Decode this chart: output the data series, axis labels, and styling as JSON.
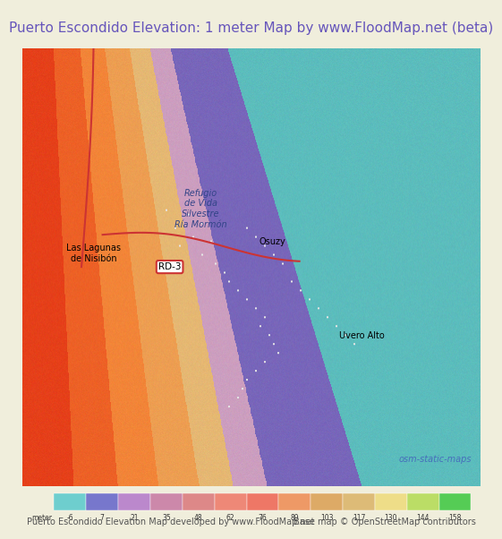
{
  "title": "Puerto Escondido Elevation: 1 meter Map by www.FloodMap.net (beta)",
  "title_color": "#6655bb",
  "title_bg": "#f0eedc",
  "title_fontsize": 11,
  "colorbar_labels": [
    "-6",
    "7",
    "21",
    "35",
    "48",
    "62",
    "76",
    "89",
    "103",
    "117",
    "130",
    "144",
    "158"
  ],
  "colorbar_label_prefix": "meter",
  "colorbar_colors": [
    "#6ecece",
    "#7777cc",
    "#bb88cc",
    "#cc88aa",
    "#dd8888",
    "#ee8877",
    "#ee7766",
    "#ee9966",
    "#ddaa66",
    "#ddbb77",
    "#eedd88",
    "#bbdd66",
    "#55cc55"
  ],
  "footer_left": "Puerto Escondido Elevation Map developed by www.FloodMap.net",
  "footer_right": "Base map © OpenStreetMap contributors",
  "footer_color": "#555555",
  "footer_fontsize": 7,
  "map_bg_ocean": "#5bbcbc",
  "map_bg_land_low": "#7766bb",
  "map_bg_land_high": "#ff6633",
  "osm_text": "osm-static-maps",
  "osm_text_color": "#4466bb",
  "label_las_lagunas": "Las Lagunas\nde Nisibón",
  "label_refugio": "Refugio\nde Vida\nSilvestre\nRía Mormón",
  "label_uvero": "Uvero Alto",
  "label_osuzy": "Osuzy",
  "label_rd3": "RD-3",
  "label_color": "#222222",
  "label_color_blue": "#2244aa",
  "road_color": "#cc3333",
  "road_color2": "#cc3355"
}
